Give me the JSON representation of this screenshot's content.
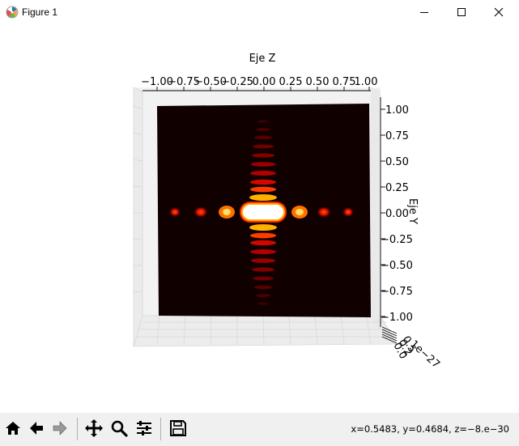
{
  "window": {
    "title": "Figure 1",
    "controls": [
      "minimize",
      "maximize",
      "close"
    ]
  },
  "plot": {
    "title": "Eje Z",
    "side_label": "Eje Y",
    "colormap": "hot",
    "view": "3D axes viewed along one axis",
    "chart_data": {
      "type": "heatmap",
      "x_ticks": [
        "−1.00",
        "−0.75",
        "−0.50",
        "−0.25",
        "0.00",
        "0.25",
        "0.50",
        "0.75",
        "1.00"
      ],
      "y_ticks": [
        "1.00",
        "0.75",
        "0.50",
        "0.25",
        "0.00",
        "−0.25",
        "−0.50",
        "−0.75",
        "−1.00"
      ],
      "x_range": [
        -1.0,
        1.0
      ],
      "y_range": [
        -1.0,
        1.0
      ],
      "xlabel": "Eje Z",
      "ylabel": "Eje Y",
      "offset_label": "1e−27",
      "pattern": "cross-shaped diffraction (sinc² x sinc²), bright central lobe at (0, 0)"
    }
  },
  "toolbar": {
    "buttons": [
      {
        "name": "home-button",
        "icon": "home-icon"
      },
      {
        "name": "back-button",
        "icon": "left-arrow-icon"
      },
      {
        "name": "forward-button",
        "icon": "right-arrow-icon"
      },
      {
        "name": "pan-button",
        "icon": "move-icon"
      },
      {
        "name": "zoom-button",
        "icon": "magnifier-icon"
      },
      {
        "name": "configure-subplots-button",
        "icon": "sliders-icon"
      },
      {
        "name": "save-button",
        "icon": "floppy-disk-icon"
      }
    ],
    "coords_readout": "x=0.5483, y=0.4684, z=−8.e−30"
  }
}
